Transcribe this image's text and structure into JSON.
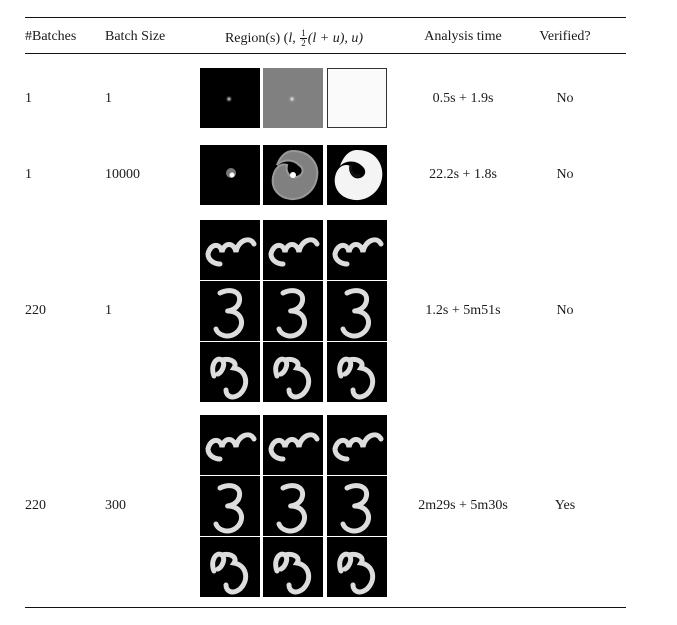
{
  "table": {
    "headers": {
      "batches": "#Batches",
      "batch_size": "Batch Size",
      "region_prefix": "Region(s) (",
      "region_l": "l",
      "region_frac_num": "1",
      "region_frac_den": "2",
      "region_mid": "(l + u), u)",
      "analysis_time": "Analysis time",
      "verified": "Verified?"
    },
    "rows": [
      {
        "batches": "1",
        "batch_size": "1",
        "analysis_time": "0.5s + 1.9s",
        "verified": "No"
      },
      {
        "batches": "1",
        "batch_size": "10000",
        "analysis_time": "22.2s + 1.8s",
        "verified": "No"
      },
      {
        "batches": "220",
        "batch_size": "1",
        "analysis_time": "1.2s + 5m51s",
        "verified": "No"
      },
      {
        "batches": "220",
        "batch_size": "300",
        "analysis_time": "2m29s + 5m30s",
        "verified": "Yes"
      }
    ],
    "region_images": {
      "row1": [
        "dot-on-black",
        "dot-on-gray",
        "near-white"
      ],
      "row2": [
        "small-blob",
        "gray-blob",
        "white-blob"
      ],
      "row3": [
        "digit-3-rotated",
        "digit-3",
        "digit-3-tilted"
      ],
      "row4": [
        "digit-3-rotated",
        "digit-3",
        "digit-3-tilted"
      ]
    },
    "colors": {
      "rule": "#111111",
      "tile_dark": "#000000",
      "tile_gray": "#808080"
    }
  }
}
